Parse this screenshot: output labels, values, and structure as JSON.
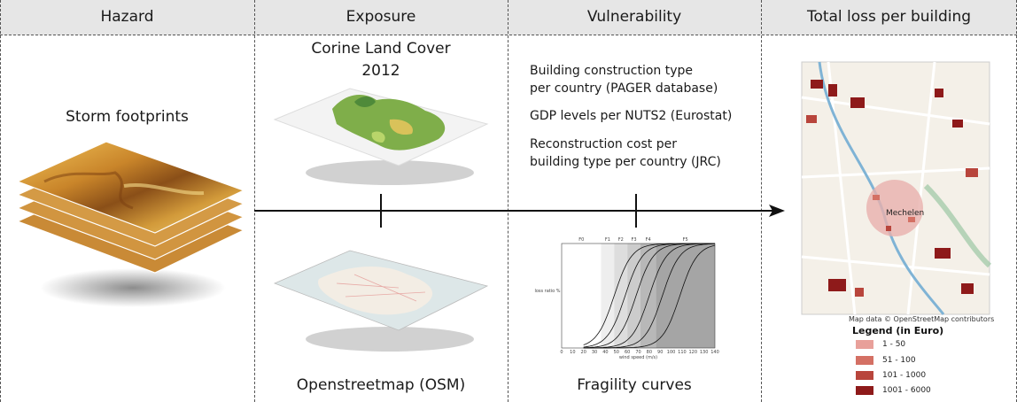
{
  "header": {
    "hazard": "Hazard",
    "exposure": "Exposure",
    "vulnerability": "Vulnerability",
    "total_loss": "Total loss per building"
  },
  "hazard": {
    "label": "Storm footprints"
  },
  "exposure": {
    "corine_line1": "Corine Land Cover",
    "corine_line2": "2012",
    "osm_label": "Openstreetmap (OSM)"
  },
  "vulnerability": {
    "item1_line1": "Building construction type",
    "item1_line2": "per country (PAGER database)",
    "item2": "GDP levels per NUTS2 (Eurostat)",
    "item3_line1": "Reconstruction cost per",
    "item3_line2": "building type per country (JRC)",
    "fragility_label": "Fragility curves",
    "chart_bands": [
      "F0",
      "F1",
      "F2",
      "F3",
      "F4",
      "F5"
    ],
    "chart_xticks": [
      "0",
      "10",
      "20",
      "30",
      "40",
      "50",
      "60",
      "70",
      "80",
      "90",
      "100",
      "110",
      "120",
      "130",
      "140"
    ],
    "chart_ylabel": "loss ratio %",
    "chart_xlabel": "wind speed (m/s)"
  },
  "map": {
    "city": "Mechelen",
    "credit": "Map data © OpenStreetMap contributors",
    "legend_title": "Legend (in Euro)",
    "legend": [
      {
        "label": "1 - 50",
        "color": "#e8a09a"
      },
      {
        "label": "51 - 100",
        "color": "#d47064"
      },
      {
        "label": "101 - 1000",
        "color": "#b8453c"
      },
      {
        "label": "1001 - 6000",
        "color": "#8e1a1a"
      }
    ]
  }
}
